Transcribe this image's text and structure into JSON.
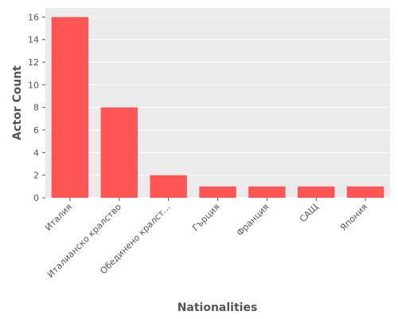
{
  "chart_data": {
    "type": "bar",
    "title": "",
    "xlabel": "Nationalities",
    "ylabel": "Actor Count",
    "categories": [
      "Италия",
      "Италианско кралство",
      "Обединено кралст…",
      "Гърция",
      "Франция",
      "САЩ",
      "Япония"
    ],
    "values": [
      16,
      8,
      2,
      1,
      1,
      1,
      1
    ],
    "ylim": [
      0,
      16.8
    ],
    "yticks": [
      0,
      2,
      4,
      6,
      8,
      10,
      12,
      14,
      16
    ],
    "grid": true,
    "legend": "none",
    "bar_color": "#ff5555",
    "background_color": "#ebebeb",
    "grid_color": "#ffffff"
  }
}
